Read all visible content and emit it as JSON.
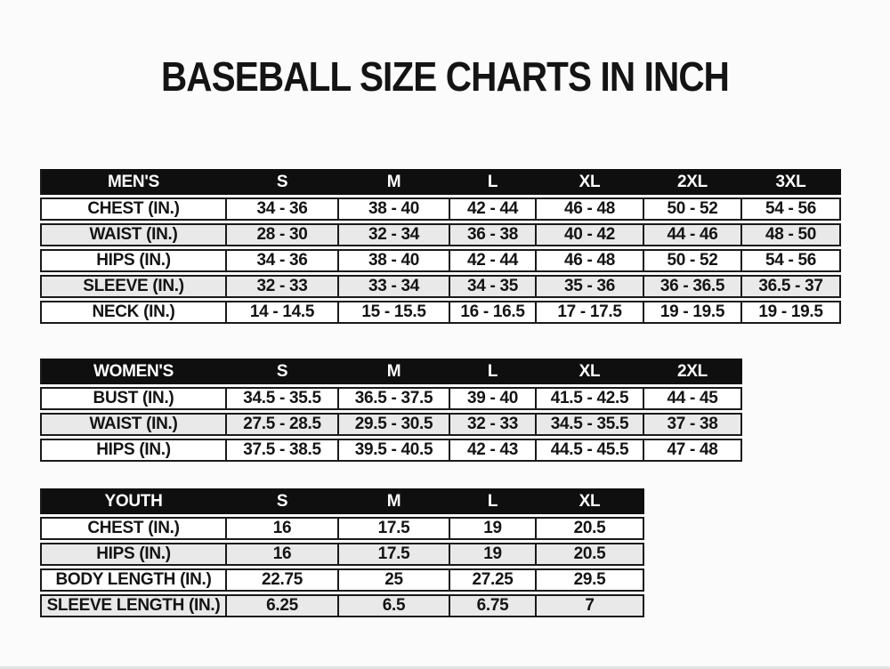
{
  "title": "BASEBALL SIZE CHARTS IN INCH",
  "colors": {
    "bg": "#fbfbfb",
    "text": "#141414",
    "border": "#1a1a1a",
    "header_bg": "#0f0f0f",
    "header_text": "#ffffff",
    "alt_row": "#e9e9e9"
  },
  "chart_data": [
    {
      "type": "table",
      "title": "MEN'S",
      "columns": [
        "S",
        "M",
        "L",
        "XL",
        "2XL",
        "3XL"
      ],
      "rows": [
        {
          "label": "CHEST (IN.)",
          "values": [
            "34 - 36",
            "38 - 40",
            "42 - 44",
            "46 - 48",
            "50 - 52",
            "54 - 56"
          ]
        },
        {
          "label": "WAIST (IN.)",
          "values": [
            "28 - 30",
            "32 - 34",
            "36 - 38",
            "40 - 42",
            "44 - 46",
            "48 - 50"
          ]
        },
        {
          "label": "HIPS (IN.)",
          "values": [
            "34 - 36",
            "38 - 40",
            "42 - 44",
            "46 - 48",
            "50 - 52",
            "54 - 56"
          ]
        },
        {
          "label": "SLEEVE (IN.)",
          "values": [
            "32 - 33",
            "33 - 34",
            "34 - 35",
            "35 - 36",
            "36 - 36.5",
            "36.5 - 37"
          ]
        },
        {
          "label": "NECK (IN.)",
          "values": [
            "14 - 14.5",
            "15 - 15.5",
            "16 - 16.5",
            "17 - 17.5",
            "19 - 19.5",
            "19 - 19.5"
          ]
        }
      ]
    },
    {
      "type": "table",
      "title": "WOMEN'S",
      "columns": [
        "S",
        "M",
        "L",
        "XL",
        "2XL"
      ],
      "rows": [
        {
          "label": "BUST (IN.)",
          "values": [
            "34.5 - 35.5",
            "36.5 - 37.5",
            "39 - 40",
            "41.5 - 42.5",
            "44 - 45"
          ]
        },
        {
          "label": "WAIST (IN.)",
          "values": [
            "27.5 - 28.5",
            "29.5 - 30.5",
            "32 - 33",
            "34.5 - 35.5",
            "37 - 38"
          ]
        },
        {
          "label": "HIPS (IN.)",
          "values": [
            "37.5 - 38.5",
            "39.5 - 40.5",
            "42 - 43",
            "44.5 - 45.5",
            "47 - 48"
          ]
        }
      ]
    },
    {
      "type": "table",
      "title": "YOUTH",
      "columns": [
        "S",
        "M",
        "L",
        "XL"
      ],
      "rows": [
        {
          "label": "CHEST (IN.)",
          "values": [
            "16",
            "17.5",
            "19",
            "20.5"
          ]
        },
        {
          "label": "HIPS (IN.)",
          "values": [
            "16",
            "17.5",
            "19",
            "20.5"
          ]
        },
        {
          "label": "BODY LENGTH (IN.)",
          "values": [
            "22.75",
            "25",
            "27.25",
            "29.5"
          ]
        },
        {
          "label": "SLEEVE LENGTH (IN.)",
          "values": [
            "6.25",
            "6.5",
            "6.75",
            "7"
          ]
        }
      ]
    }
  ]
}
